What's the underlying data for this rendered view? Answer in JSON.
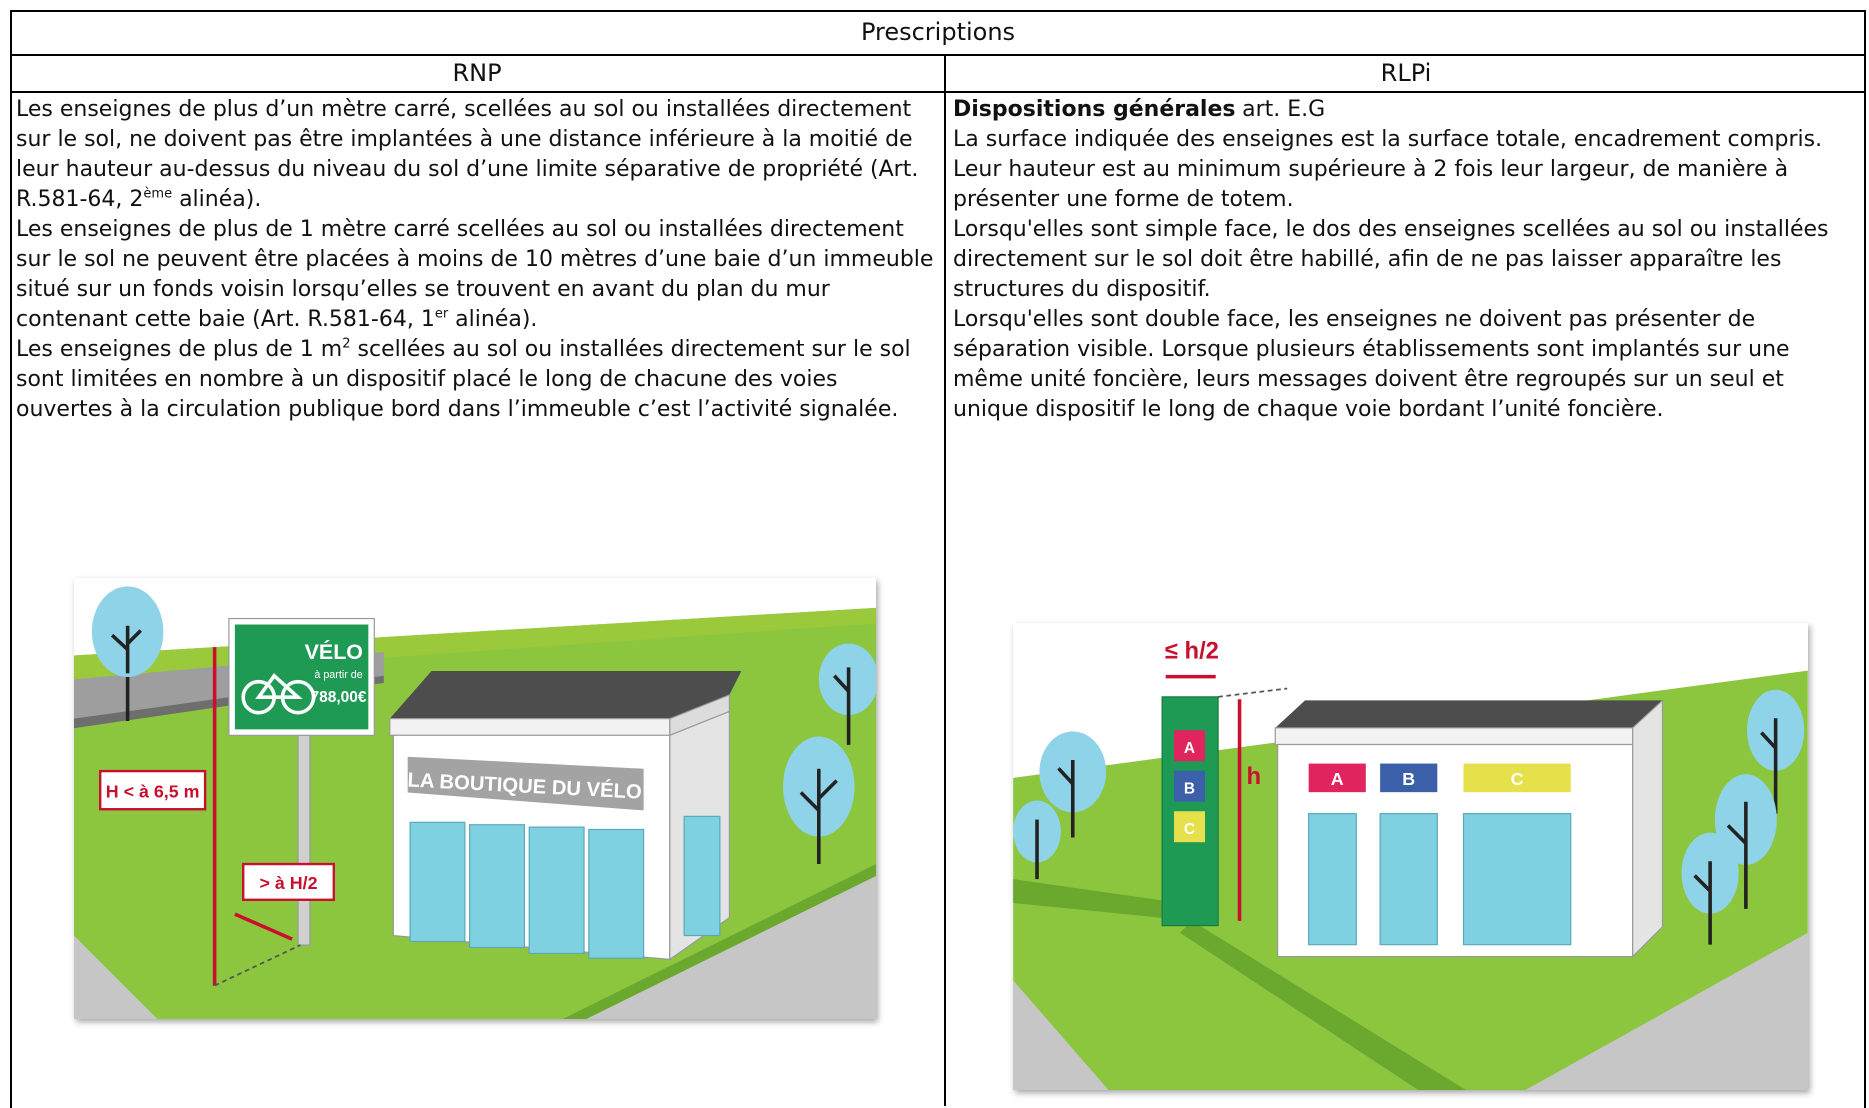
{
  "table": {
    "title": "Prescriptions",
    "columns": [
      "RNP",
      "RLPi"
    ],
    "rnp": {
      "paragraphs": [
        {
          "text": "Les enseignes de plus d’un mètre carré, scellées au sol ou installées directement sur le sol, ne doivent pas être implantées à une distance inférieure à la moitié de leur hauteur au-dessus du niveau du sol d’une limite séparative de propriété (Art. R.581-64, 2",
          "sup": "ème",
          "tail": " alinéa)."
        },
        {
          "text": "Les enseignes de plus de 1 mètre carré scellées au sol ou installées directement sur le sol ne peuvent être placées à moins de 10 mètres d’une baie d’un immeuble situé sur un fonds voisin lorsqu’elles se trouvent en avant du plan du mur contenant cette baie (Art. R.581-64, 1",
          "sup": "er",
          "tail": " alinéa)."
        },
        {
          "text": "Les enseignes de plus de 1 m",
          "sup": "2",
          "tail": " scellées au sol ou installées directement sur le sol sont limitées en nombre à un dispositif placé le long de chacune des voies ouvertes à la circulation publique bord dans l’immeuble c’est l’activité signalée."
        }
      ]
    },
    "rlpi": {
      "heading": {
        "bold": "Dispositions générales",
        "text": "art. E.G"
      },
      "paragraphs": [
        {
          "text": "La surface indiquée des enseignes est la surface totale, encadrement compris."
        },
        {
          "text": "Leur hauteur est au minimum supérieure à 2 fois leur largeur, de manière à présenter une forme de totem."
        },
        {
          "text": "Lorsqu'elles sont simple face, le dos des enseignes scellées au sol ou installées directement sur le sol doit être habillé, afin de ne pas laisser apparaître les structures du dispositif."
        },
        {
          "text": "Lorsqu'elles sont double face, les enseignes ne doivent pas présenter de séparation visible. Lorsque plusieurs établissements sont implantés sur une même unité foncière, leurs messages doivent être regroupés sur un seul et unique dispositif le long de chaque voie bordant l’unité foncière."
        }
      ]
    }
  },
  "illustrations": {
    "rnp": {
      "billboard_title": "VÉLO",
      "billboard_sub": "à partir de",
      "billboard_price": "788,00€",
      "shop_sign": "LA BOUTIQUE DU VÉLO",
      "height_label": "H < à 6,5 m",
      "distance_label": "> à H/2"
    },
    "rlpi": {
      "width_label": "≤ h/2",
      "height_label": "h",
      "totem_signs": [
        "A",
        "B",
        "C"
      ],
      "shop_signs": [
        "A",
        "B",
        "C"
      ]
    }
  }
}
